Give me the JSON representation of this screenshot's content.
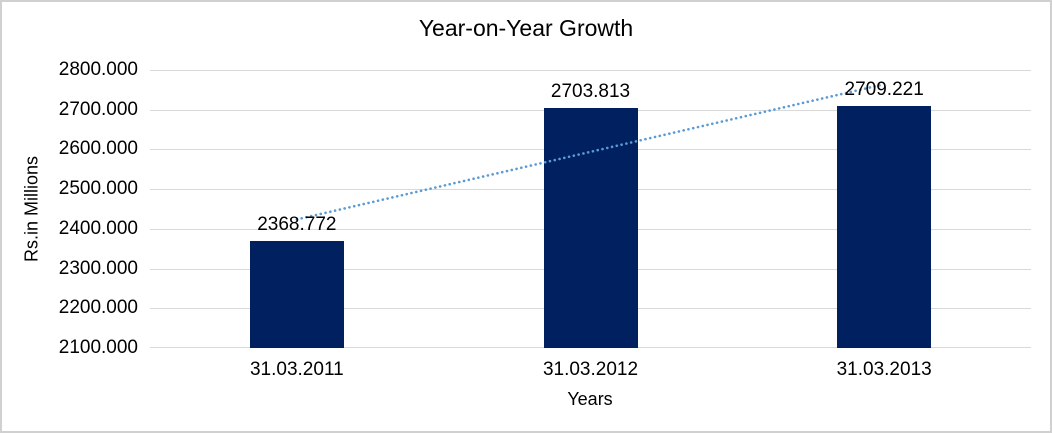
{
  "chart_data": {
    "type": "bar",
    "title": "Year-on-Year Growth",
    "categories": [
      "31.03.2011",
      "31.03.2012",
      "31.03.2013"
    ],
    "values": [
      2368.772,
      2703.813,
      2709.221
    ],
    "data_labels": [
      "2368.772",
      "2703.813",
      "2709.221"
    ],
    "xlabel": "Years",
    "ylabel": "Rs.in Millions",
    "ylim": [
      2100,
      2800
    ],
    "ytick_step": 100,
    "ytick_labels": [
      "2100.000",
      "2200.000",
      "2300.000",
      "2400.000",
      "2500.000",
      "2600.000",
      "2700.000",
      "2800.000"
    ],
    "grid": true,
    "legend": "none",
    "trendline": {
      "type": "linear",
      "style": "dotted"
    },
    "colors": {
      "bar": "#002060",
      "trendline": "#5b9bd5",
      "gridline": "#d9d9d9",
      "text": "#000000",
      "frame_border": "#d0d0d0",
      "background": "#ffffff"
    }
  }
}
